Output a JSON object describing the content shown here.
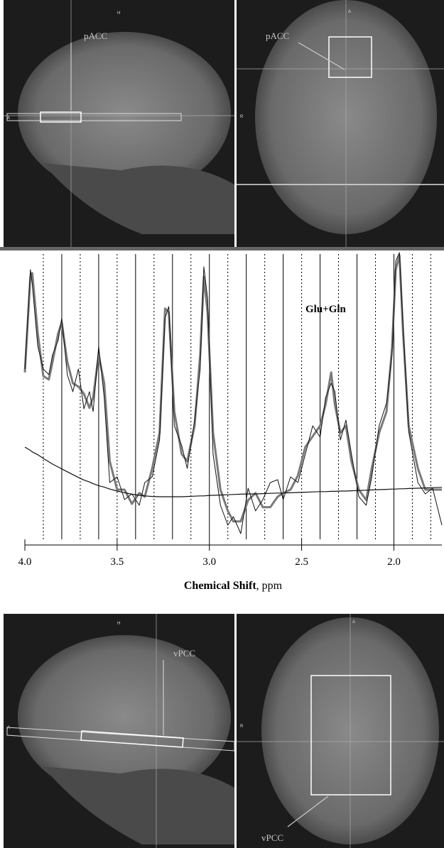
{
  "panels": {
    "top": {
      "left_label": "pACC",
      "right_label": "pACC",
      "left_marks": [
        "H",
        "A"
      ],
      "right_marks": [
        "A",
        "R"
      ]
    },
    "bottom": {
      "left_label": "vPCC",
      "right_label": "vPCC",
      "left_marks": [
        "H",
        "A"
      ],
      "right_marks": [
        "A",
        "R"
      ]
    }
  },
  "chart_data": {
    "type": "line",
    "annotation": "Glu+Gln",
    "xlabel": {
      "bold": "Chemical Shift",
      "plain": ", ppm"
    },
    "x": [
      4.0,
      3.97,
      3.96,
      3.93,
      3.9,
      3.87,
      3.85,
      3.82,
      3.8,
      3.77,
      3.74,
      3.71,
      3.68,
      3.65,
      3.63,
      3.6,
      3.57,
      3.54,
      3.5,
      3.46,
      3.42,
      3.38,
      3.35,
      3.31,
      3.27,
      3.24,
      3.22,
      3.19,
      3.15,
      3.12,
      3.08,
      3.05,
      3.03,
      3.01,
      2.98,
      2.94,
      2.9,
      2.87,
      2.83,
      2.79,
      2.75,
      2.71,
      2.67,
      2.63,
      2.6,
      2.56,
      2.52,
      2.48,
      2.44,
      2.4,
      2.37,
      2.34,
      2.32,
      2.29,
      2.26,
      2.23,
      2.19,
      2.15,
      2.12,
      2.08,
      2.04,
      2.01,
      1.99,
      1.97,
      1.95,
      1.92,
      1.87,
      1.83,
      1.79,
      1.74
    ],
    "series": [
      {
        "color": "#7a7a7a",
        "width": 3,
        "values": [
          58.8,
          92.5,
          93.8,
          72.5,
          57.5,
          56.3,
          62.5,
          72.5,
          76.3,
          62.5,
          55,
          53.8,
          51.3,
          46.3,
          50,
          65,
          55,
          27.5,
          17.5,
          17.5,
          12.5,
          16.3,
          15,
          25,
          37.5,
          81.3,
          80,
          45,
          30,
          27.5,
          40,
          65,
          92.5,
          80,
          37.5,
          17.5,
          10,
          6.3,
          6.3,
          13.8,
          16.3,
          11.3,
          11.3,
          15,
          16.3,
          17.5,
          22.5,
          32.5,
          36.3,
          40,
          47.5,
          58.8,
          47.5,
          37.5,
          40,
          27.5,
          17.5,
          13.8,
          25,
          37.5,
          45,
          67.5,
          95,
          100,
          72.5,
          40,
          25,
          17.5,
          17.5,
          17.5
        ]
      },
      {
        "color": "#111111",
        "width": 1,
        "values": [
          60,
          95,
          90,
          68,
          60,
          58,
          65,
          70,
          78,
          58,
          52,
          60,
          46,
          52,
          45,
          68,
          50,
          20,
          22,
          14,
          16,
          12,
          20,
          22,
          35,
          78,
          82,
          40,
          33,
          25,
          42,
          60,
          96,
          85,
          30,
          12,
          5,
          8,
          2,
          18,
          10,
          14,
          20,
          21,
          14,
          22,
          20,
          30,
          40,
          36,
          50,
          55,
          52,
          35,
          42,
          30,
          15,
          12,
          22,
          40,
          48,
          65,
          98,
          101,
          75,
          38,
          20,
          16,
          18,
          5
        ]
      },
      {
        "color": "#111111",
        "width": 1.2,
        "values": [
          32.5,
          31.3,
          30.8,
          29.8,
          28.5,
          27.3,
          26.5,
          25.5,
          24.8,
          23.8,
          22.8,
          21.8,
          20.9,
          20.2,
          19.6,
          18.9,
          18.4,
          17.7,
          17,
          16.4,
          15.9,
          15.5,
          15.3,
          15.1,
          15,
          15,
          15,
          15,
          15,
          15.1,
          15.2,
          15.3,
          15.3,
          15.4,
          15.5,
          15.6,
          15.7,
          15.8,
          15.9,
          16,
          16,
          16.1,
          16.2,
          16.3,
          16.3,
          16.4,
          16.5,
          16.6,
          16.7,
          16.8,
          16.8,
          16.9,
          16.9,
          17,
          17,
          17.1,
          17.2,
          17.3,
          17.4,
          17.5,
          17.6,
          17.7,
          17.7,
          17.8,
          17.8,
          17.9,
          18,
          18.1,
          18.2,
          18.3
        ]
      }
    ],
    "xlim": [
      4.0,
      1.74
    ],
    "ylim": [
      0,
      102
    ],
    "xticks": [
      {
        "value": 4.0,
        "label": "4.0"
      },
      {
        "value": 3.5,
        "label": "3.5"
      },
      {
        "value": 3.0,
        "label": "3.0"
      },
      {
        "value": 2.5,
        "label": "2.5"
      },
      {
        "value": 2.0,
        "label": "2.0"
      }
    ],
    "grid_solid": [
      3.8,
      3.6,
      3.4,
      3.2,
      3.0,
      2.8,
      2.6,
      2.4,
      2.2,
      2.0
    ],
    "grid_dotted": [
      3.9,
      3.7,
      3.5,
      3.3,
      3.1,
      2.9,
      2.7,
      2.5,
      2.3,
      2.1,
      1.9,
      1.8
    ]
  }
}
